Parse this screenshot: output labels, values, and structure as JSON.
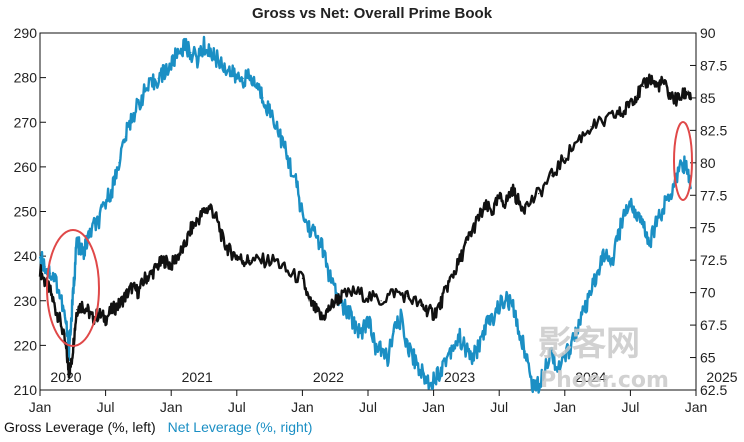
{
  "chart_data": {
    "type": "line",
    "title": "Gross vs Net: Overall Prime Book",
    "left_axis": {
      "ylim": [
        210,
        290
      ],
      "ticks": [
        "290",
        "280",
        "270",
        "260",
        "250",
        "240",
        "230",
        "220",
        "210"
      ]
    },
    "right_axis": {
      "ylim": [
        62.5,
        90
      ],
      "ticks": [
        "90",
        "87.5",
        "85",
        "82.5",
        "80",
        "77.5",
        "75",
        "72.5",
        "70",
        "67.5",
        "65",
        "62.5"
      ]
    },
    "x_axis": {
      "range": [
        2020.0,
        2025.0
      ],
      "month_ticks": [
        {
          "x": 2020.0,
          "label": "Jan"
        },
        {
          "x": 2020.5,
          "label": "Jul"
        },
        {
          "x": 2021.0,
          "label": "Jan"
        },
        {
          "x": 2021.5,
          "label": "Jul"
        },
        {
          "x": 2022.0,
          "label": "Jan"
        },
        {
          "x": 2022.5,
          "label": "Jul"
        },
        {
          "x": 2023.0,
          "label": "Jan"
        },
        {
          "x": 2023.5,
          "label": "Jul"
        },
        {
          "x": 2024.0,
          "label": "Jan"
        },
        {
          "x": 2024.5,
          "label": "Jul"
        },
        {
          "x": 2025.0,
          "label": "Jan"
        }
      ],
      "year_labels": [
        {
          "x": 2020.0,
          "label": "2020"
        },
        {
          "x": 2021.0,
          "label": "2021"
        },
        {
          "x": 2022.0,
          "label": "2022"
        },
        {
          "x": 2023.0,
          "label": "2023"
        },
        {
          "x": 2024.0,
          "label": "2024"
        },
        {
          "x": 2025.0,
          "label": "2025"
        }
      ]
    },
    "grid": false,
    "series": [
      {
        "name": "Gross Leverage (%, left)",
        "axis": "left",
        "color": "#111111",
        "x": [
          2020.0,
          2020.04,
          2020.08,
          2020.12,
          2020.16,
          2020.2,
          2020.22,
          2020.24,
          2020.26,
          2020.28,
          2020.32,
          2020.36,
          2020.4,
          2020.45,
          2020.5,
          2020.55,
          2020.6,
          2020.65,
          2020.7,
          2020.75,
          2020.8,
          2020.85,
          2020.9,
          2020.95,
          2021.0,
          2021.05,
          2021.1,
          2021.15,
          2021.2,
          2021.25,
          2021.3,
          2021.35,
          2021.4,
          2021.45,
          2021.5,
          2021.55,
          2021.6,
          2021.7,
          2021.8,
          2021.9,
          2022.0,
          2022.05,
          2022.1,
          2022.15,
          2022.2,
          2022.25,
          2022.3,
          2022.4,
          2022.5,
          2022.6,
          2022.7,
          2022.8,
          2022.9,
          2022.95,
          2023.0,
          2023.05,
          2023.1,
          2023.15,
          2023.2,
          2023.25,
          2023.3,
          2023.35,
          2023.4,
          2023.45,
          2023.5,
          2023.55,
          2023.6,
          2023.65,
          2023.7,
          2023.8,
          2023.9,
          2024.0,
          2024.1,
          2024.2,
          2024.3,
          2024.4,
          2024.45,
          2024.5,
          2024.55,
          2024.6,
          2024.65,
          2024.7,
          2024.75,
          2024.8,
          2024.85,
          2024.9,
          2024.94,
          2024.96
        ],
        "y": [
          237,
          234,
          232,
          228,
          225,
          219,
          214,
          216,
          222,
          228,
          229,
          228,
          226,
          227,
          226,
          228,
          229,
          231,
          233,
          232,
          235,
          236,
          238,
          239,
          238,
          240,
          242,
          246,
          248,
          250,
          251,
          248,
          243,
          241,
          240,
          239,
          239,
          239,
          239,
          236,
          235,
          230,
          228,
          226,
          228,
          230,
          231,
          232,
          231,
          230,
          232,
          231,
          229,
          228,
          227,
          229,
          233,
          236,
          239,
          243,
          246,
          249,
          251,
          250,
          253,
          252,
          255,
          252,
          251,
          254,
          258,
          262,
          266,
          269,
          270,
          272,
          272,
          275,
          276,
          278,
          280,
          278,
          279,
          276,
          275,
          276,
          277,
          275
        ]
      },
      {
        "name": "Net Leverage (%, right)",
        "axis": "right",
        "color": "#1b8fc4",
        "x": [
          2020.0,
          2020.04,
          2020.08,
          2020.12,
          2020.16,
          2020.2,
          2020.22,
          2020.24,
          2020.26,
          2020.28,
          2020.3,
          2020.33,
          2020.36,
          2020.4,
          2020.45,
          2020.5,
          2020.55,
          2020.6,
          2020.65,
          2020.7,
          2020.75,
          2020.8,
          2020.85,
          2020.9,
          2020.95,
          2021.0,
          2021.05,
          2021.1,
          2021.15,
          2021.2,
          2021.25,
          2021.3,
          2021.35,
          2021.4,
          2021.45,
          2021.5,
          2021.55,
          2021.6,
          2021.65,
          2021.7,
          2021.75,
          2021.8,
          2021.85,
          2021.9,
          2021.95,
          2022.0,
          2022.05,
          2022.1,
          2022.15,
          2022.2,
          2022.25,
          2022.3,
          2022.35,
          2022.4,
          2022.45,
          2022.5,
          2022.55,
          2022.6,
          2022.65,
          2022.7,
          2022.75,
          2022.8,
          2022.85,
          2022.9,
          2022.95,
          2023.0,
          2023.05,
          2023.1,
          2023.15,
          2023.2,
          2023.25,
          2023.3,
          2023.35,
          2023.4,
          2023.45,
          2023.5,
          2023.55,
          2023.6,
          2023.65,
          2023.7,
          2023.75,
          2023.8,
          2023.85,
          2023.9,
          2023.95,
          2024.0,
          2024.05,
          2024.1,
          2024.15,
          2024.2,
          2024.25,
          2024.3,
          2024.35,
          2024.4,
          2024.45,
          2024.5,
          2024.55,
          2024.6,
          2024.65,
          2024.7,
          2024.75,
          2024.8,
          2024.85,
          2024.9,
          2024.93,
          2024.96
        ],
        "y": [
          72.8,
          72.0,
          71.5,
          71.0,
          69.5,
          67.5,
          65.5,
          68.0,
          71.0,
          74.0,
          73.5,
          73.0,
          74.0,
          75.0,
          75.5,
          77.0,
          78.0,
          80.0,
          82.0,
          83.5,
          84.5,
          85.5,
          86.0,
          86.5,
          87.0,
          87.5,
          88.5,
          89.0,
          88.5,
          88.0,
          89.0,
          88.5,
          88.0,
          87.5,
          87.0,
          86.5,
          86.5,
          86.5,
          86.0,
          85.0,
          84.0,
          83.0,
          81.5,
          80.0,
          78.5,
          76.0,
          75.0,
          74.5,
          73.5,
          71.5,
          70.0,
          69.0,
          68.5,
          67.5,
          67.0,
          68.0,
          66.0,
          65.5,
          65.0,
          67.0,
          68.0,
          66.0,
          65.0,
          64.0,
          63.2,
          63.3,
          64.0,
          65.0,
          66.0,
          66.5,
          65.5,
          65.0,
          66.0,
          67.5,
          68.0,
          69.0,
          69.5,
          69.0,
          67.0,
          65.5,
          63.0,
          62.8,
          64.5,
          65.5,
          64.0,
          65.0,
          66.0,
          67.5,
          68.5,
          70.0,
          71.5,
          73.0,
          72.0,
          74.0,
          76.0,
          77.0,
          76.0,
          75.0,
          74.0,
          75.5,
          76.5,
          77.5,
          79.0,
          80.0,
          79.5,
          78.0
        ]
      }
    ],
    "legend": {
      "placement": "bottom-left"
    },
    "watermark": {
      "logo_cn": "影客网",
      "logo_url": "Phoer.com"
    }
  }
}
